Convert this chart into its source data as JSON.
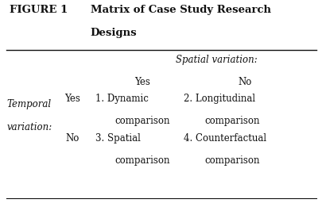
{
  "title_label": "FIGURE 1",
  "title_text1": "Matrix of Case Study Research",
  "title_text2": "Designs",
  "spatial_label": "Spatial variation:",
  "col_yes": "Yes",
  "col_no": "No",
  "row_label_top": "Temporal",
  "row_label_bot": "variation:",
  "row_yes": "Yes",
  "row_no": "No",
  "cell1_line1": "1. Dynamic",
  "cell1_line2": "comparison",
  "cell2_line1": "2. Longitudinal",
  "cell2_line2": "comparison",
  "cell3_line1": "3. Spatial",
  "cell3_line2": "comparison",
  "cell4_line1": "4. Counterfactual",
  "cell4_line2": "comparison",
  "bg_color": "#ffffff",
  "text_color": "#111111",
  "line_color": "#111111",
  "title_fontsize": 9.5,
  "body_fontsize": 8.5,
  "italic_fontsize": 8.5
}
